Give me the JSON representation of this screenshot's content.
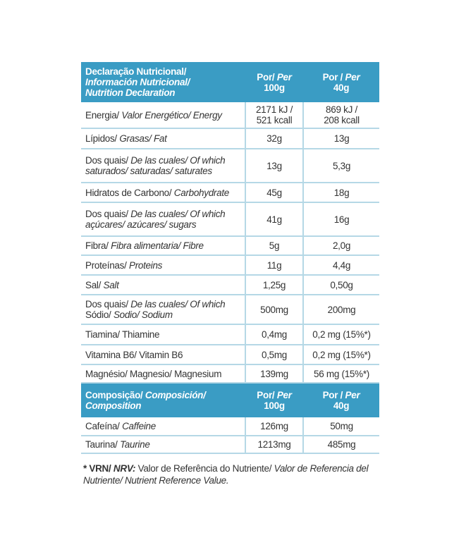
{
  "header": {
    "label": [
      {
        "t": "Declaração Nutricional/",
        "i": false
      },
      {
        "t": "Información Nutricional/",
        "i": true
      },
      {
        "t": "Nutrition Declaration",
        "i": true
      }
    ],
    "col1a": "Por/",
    "col1b": "Per",
    "col1c": "100g",
    "col2a": "Por /",
    "col2b": "Per",
    "col2c": "40g"
  },
  "rows": [
    {
      "label": [
        {
          "t": "Energia/ ",
          "i": false
        },
        {
          "t": "Valor Energético/ Energy",
          "i": true
        }
      ],
      "v100": [
        "2171 kJ /",
        "521 kcall"
      ],
      "v40": [
        "869 kJ /",
        "208 kcall"
      ],
      "h": 37
    },
    {
      "label": [
        {
          "t": "Lípidos/ ",
          "i": false
        },
        {
          "t": "Grasas/ Fat",
          "i": true
        }
      ],
      "v100": [
        "32g"
      ],
      "v40": [
        "13g"
      ],
      "h": 29
    },
    {
      "label": [
        {
          "t": "Dos quais/ ",
          "i": false
        },
        {
          "t": "De las cuales/ Of which",
          "i": true
        },
        {
          "t": "br"
        },
        {
          "t": "saturados/ saturadas/ saturates",
          "i": true
        }
      ],
      "v100": [
        "13g"
      ],
      "v40": [
        "5,3g"
      ],
      "h": 48
    },
    {
      "label": [
        {
          "t": "Hidratos de Carbono/ ",
          "i": false
        },
        {
          "t": "Carbohydrate",
          "i": true
        }
      ],
      "v100": [
        "45g"
      ],
      "v40": [
        "18g"
      ],
      "h": 28
    },
    {
      "label": [
        {
          "t": "Dos quais/ ",
          "i": false
        },
        {
          "t": "De las cuales/ Of which",
          "i": true
        },
        {
          "t": "br"
        },
        {
          "t": "açúcares/ azúcares/ sugars",
          "i": true
        }
      ],
      "v100": [
        "41g"
      ],
      "v40": [
        "16g"
      ],
      "h": 48
    },
    {
      "label": [
        {
          "t": "Fibra/ ",
          "i": false
        },
        {
          "t": "Fibra alimentaria/ Fibre",
          "i": true
        }
      ],
      "v100": [
        "5g"
      ],
      "v40": [
        "2,0g"
      ],
      "h": 27
    },
    {
      "label": [
        {
          "t": "Proteínas/ ",
          "i": false
        },
        {
          "t": "Proteins",
          "i": true
        }
      ],
      "v100": [
        "11g"
      ],
      "v40": [
        "4,4g"
      ],
      "h": 28
    },
    {
      "label": [
        {
          "t": "Sal/ ",
          "i": false
        },
        {
          "t": "Salt",
          "i": true
        }
      ],
      "v100": [
        "1,25g"
      ],
      "v40": [
        "0,50g"
      ],
      "h": 28
    },
    {
      "label": [
        {
          "t": "Dos quais/ ",
          "i": false
        },
        {
          "t": "De las cuales/ Of which",
          "i": true
        },
        {
          "t": "br"
        },
        {
          "t": "Sódio/ ",
          "i": false
        },
        {
          "t": "Sodio/ Sodium",
          "i": true
        }
      ],
      "v100": [
        "500mg"
      ],
      "v40": [
        "200mg"
      ],
      "h": 42
    },
    {
      "label": [
        {
          "t": "Tiamina/ Thiamine",
          "i": false
        }
      ],
      "v100": [
        "0,4mg"
      ],
      "v40": [
        "0,2 mg (15%*)"
      ],
      "h": 29
    },
    {
      "label": [
        {
          "t": "Vitamina B6/ Vitamin B6",
          "i": false
        }
      ],
      "v100": [
        "0,5mg"
      ],
      "v40": [
        "0,2 mg (15%*)"
      ],
      "h": 28
    },
    {
      "label": [
        {
          "t": "Magnésio/ Magnesio/ Magnesium",
          "i": false
        }
      ],
      "v100": [
        "139mg"
      ],
      "v40": [
        "56 mg (15%*)"
      ],
      "h": 26
    }
  ],
  "comp_header": {
    "label": [
      {
        "t": "Composição/ ",
        "i": false
      },
      {
        "t": "Composición/",
        "i": true
      },
      {
        "t": "br"
      },
      {
        "t": "Composition",
        "i": true
      }
    ]
  },
  "comp_rows": [
    {
      "label": [
        {
          "t": "Cafeína/ ",
          "i": false
        },
        {
          "t": "Caffeine",
          "i": true
        }
      ],
      "v100": [
        "126mg"
      ],
      "v40": [
        "50mg"
      ],
      "h": 26
    },
    {
      "label": [
        {
          "t": "Taurina/ ",
          "i": false
        },
        {
          "t": "Taurine",
          "i": true
        }
      ],
      "v100": [
        "1213mg"
      ],
      "v40": [
        "485mg"
      ],
      "h": 25
    }
  ],
  "footnote": {
    "a": "* VRN/ ",
    "b": "NRV:",
    "c": " Valor de Referência do Nutriente/ ",
    "d": "Valor de Referencia del Nutriente/ Nutrient Reference Value."
  },
  "colors": {
    "header_bg": "#3a9cc4",
    "grid": "#b5d8e6"
  }
}
